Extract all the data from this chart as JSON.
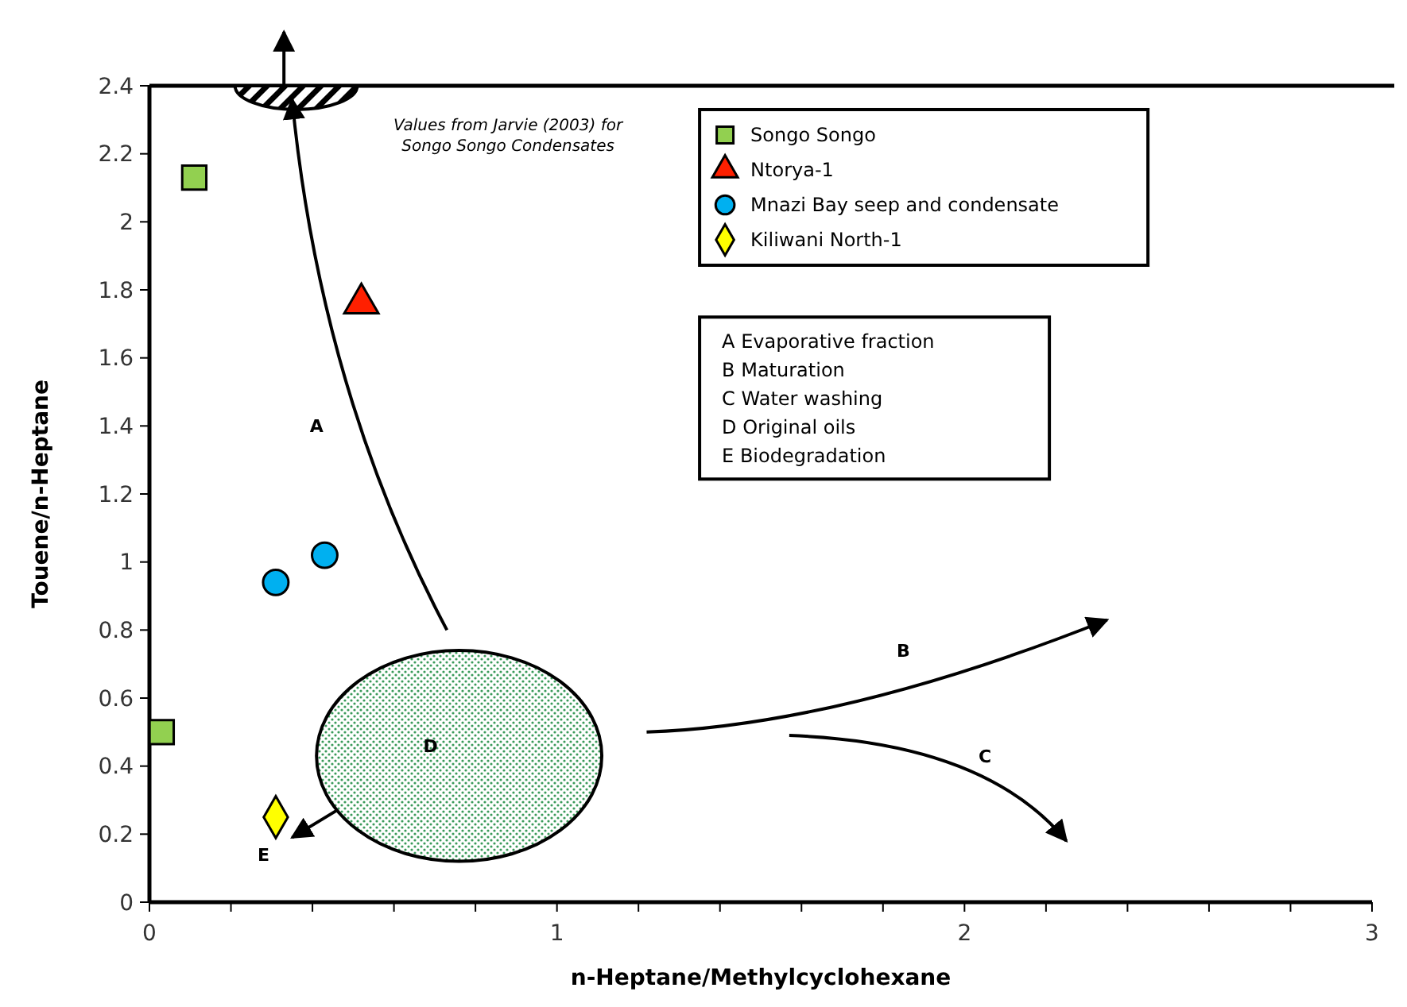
{
  "chart_data": {
    "type": "scatter",
    "xlabel": "n-Heptane/Methylcyclohexane",
    "ylabel": "Touene/n-Heptane",
    "xlim": [
      0,
      3
    ],
    "xticks": [
      0,
      {
        "value": 0.2,
        "label": null
      },
      {
        "value": 0.4,
        "label": null
      },
      {
        "value": 0.6,
        "label": null
      },
      {
        "value": 0.8,
        "label": null
      },
      1,
      {
        "value": 1.2,
        "label": null
      },
      {
        "value": 1.4,
        "label": null
      },
      {
        "value": 1.6,
        "label": null
      },
      {
        "value": 1.8,
        "label": null
      },
      2,
      {
        "value": 2.2,
        "label": null
      },
      {
        "value": 2.4,
        "label": null
      },
      {
        "value": 2.6,
        "label": null
      },
      {
        "value": 2.8,
        "label": null
      },
      3
    ],
    "ylim": [
      0,
      2.4
    ],
    "yticks": [
      0,
      0.2,
      0.4,
      0.6,
      0.8,
      1,
      1.2,
      1.4,
      1.6,
      1.8,
      2,
      2.2,
      2.4
    ],
    "grid": false,
    "legend": "top right",
    "series": [
      {
        "name": "Songo Songo",
        "color": "#92d050",
        "marker": "square",
        "x": [
          0.11,
          0.03
        ],
        "values": [
          2.13,
          0.5
        ]
      },
      {
        "name": "Ntorya-1",
        "color": "#ff2000",
        "marker": "triangle",
        "x": [
          0.52
        ],
        "values": [
          1.76
        ]
      },
      {
        "name": "Mnazi Bay seep and condensate",
        "color": "#00b0f0",
        "marker": "circle",
        "x": [
          0.31,
          0.43
        ],
        "values": [
          0.94,
          1.02
        ]
      },
      {
        "name": "Kiliwani North-1",
        "color": "#ffff00",
        "marker": "diamond",
        "x": [
          0.31
        ],
        "values": [
          0.25
        ]
      }
    ],
    "annotations": [
      "Values from Jarvie (2003) for Songo Songo Condensates",
      "A Evaporative fraction",
      "B Maturation",
      "C Water washing",
      "D Original oils",
      "E Biodegradation",
      "A",
      "B",
      "C",
      "D",
      "E"
    ]
  }
}
